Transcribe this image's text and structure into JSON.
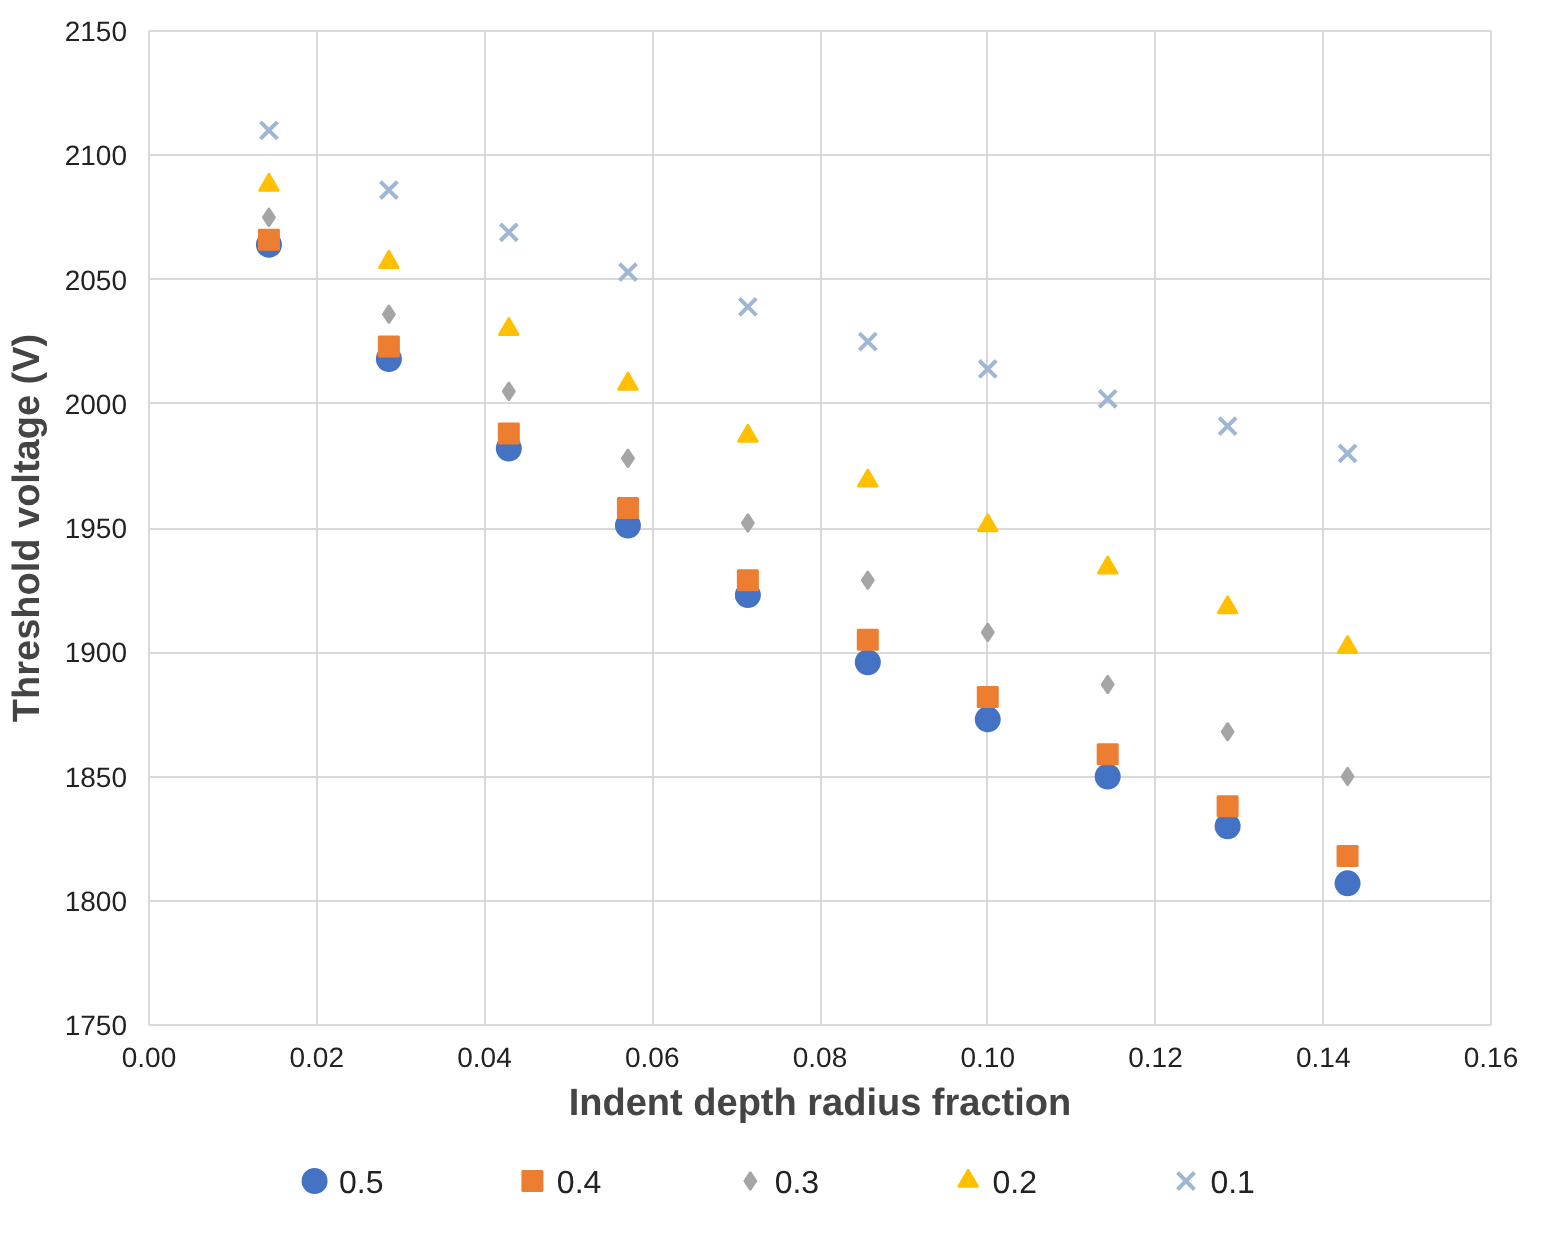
{
  "chart_data": {
    "type": "scatter",
    "xlabel": "Indent depth radius fraction",
    "ylabel": "Threshold voltage (V)",
    "x": [
      0.0143,
      0.0286,
      0.0429,
      0.0571,
      0.0714,
      0.0857,
      0.1,
      0.1143,
      0.1286,
      0.1429
    ],
    "series": [
      {
        "name": "0.5",
        "color": "#4472c4",
        "marker": "circle",
        "values": [
          2064,
          2018,
          1982,
          1951,
          1923,
          1896,
          1873,
          1850,
          1830,
          1807
        ]
      },
      {
        "name": "0.4",
        "color": "#ed7d31",
        "marker": "square",
        "values": [
          2066,
          2023,
          1988,
          1958,
          1929,
          1905,
          1882,
          1859,
          1838,
          1818
        ]
      },
      {
        "name": "0.3",
        "color": "#a5a5a5",
        "marker": "diamond",
        "values": [
          2075,
          2036,
          2005,
          1978,
          1952,
          1929,
          1908,
          1887,
          1868,
          1850
        ]
      },
      {
        "name": "0.2",
        "color": "#ffc000",
        "marker": "triangle",
        "values": [
          2088,
          2057,
          2030,
          2008,
          1987,
          1969,
          1951,
          1934,
          1918,
          1902
        ]
      },
      {
        "name": "0.1",
        "color": "#9fb6d4",
        "marker": "cross",
        "values": [
          2110,
          2086,
          2069,
          2053,
          2039,
          2025,
          2014,
          2002,
          1991,
          1980
        ]
      }
    ],
    "xlim": [
      0,
      0.16
    ],
    "xticks": [
      {
        "value": 0,
        "label": "0.00"
      },
      {
        "value": 0.02,
        "label": "0.02"
      },
      {
        "value": 0.04,
        "label": "0.04"
      },
      {
        "value": 0.06,
        "label": "0.06"
      },
      {
        "value": 0.08,
        "label": "0.08"
      },
      {
        "value": 0.1,
        "label": "0.10"
      },
      {
        "value": 0.12,
        "label": "0.12"
      },
      {
        "value": 0.14,
        "label": "0.14"
      },
      {
        "value": 0.16,
        "label": "0.16"
      }
    ],
    "ylim": [
      1750,
      2150
    ],
    "yticks": [
      1750,
      1800,
      1850,
      1900,
      1950,
      2000,
      2050,
      2100,
      2150
    ],
    "grid": true,
    "legend": "bottom"
  }
}
